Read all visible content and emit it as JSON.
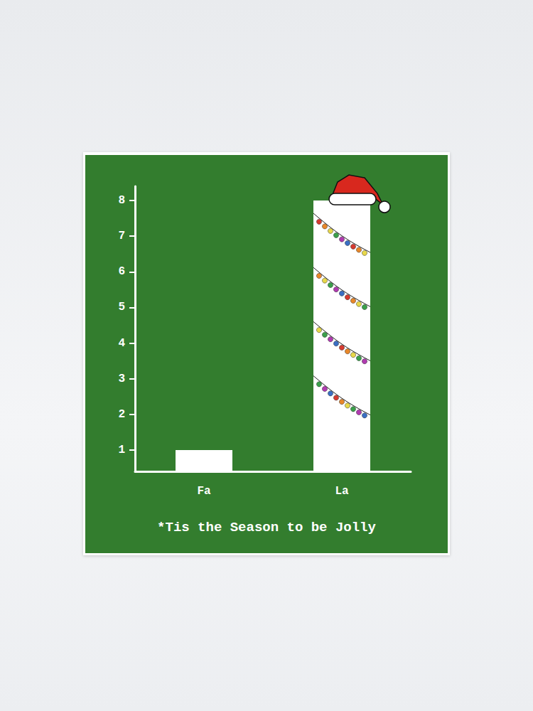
{
  "chart_data": {
    "type": "bar",
    "categories": [
      "Fa",
      "La"
    ],
    "values": [
      1,
      8
    ],
    "color": "#ffffff",
    "ylim": [
      0.4,
      8.4
    ],
    "yticks": [
      1,
      2,
      3,
      4,
      5,
      6,
      7,
      8
    ],
    "grid": false,
    "annotations": [
      "*Tis the Season to be Jolly"
    ]
  }
}
